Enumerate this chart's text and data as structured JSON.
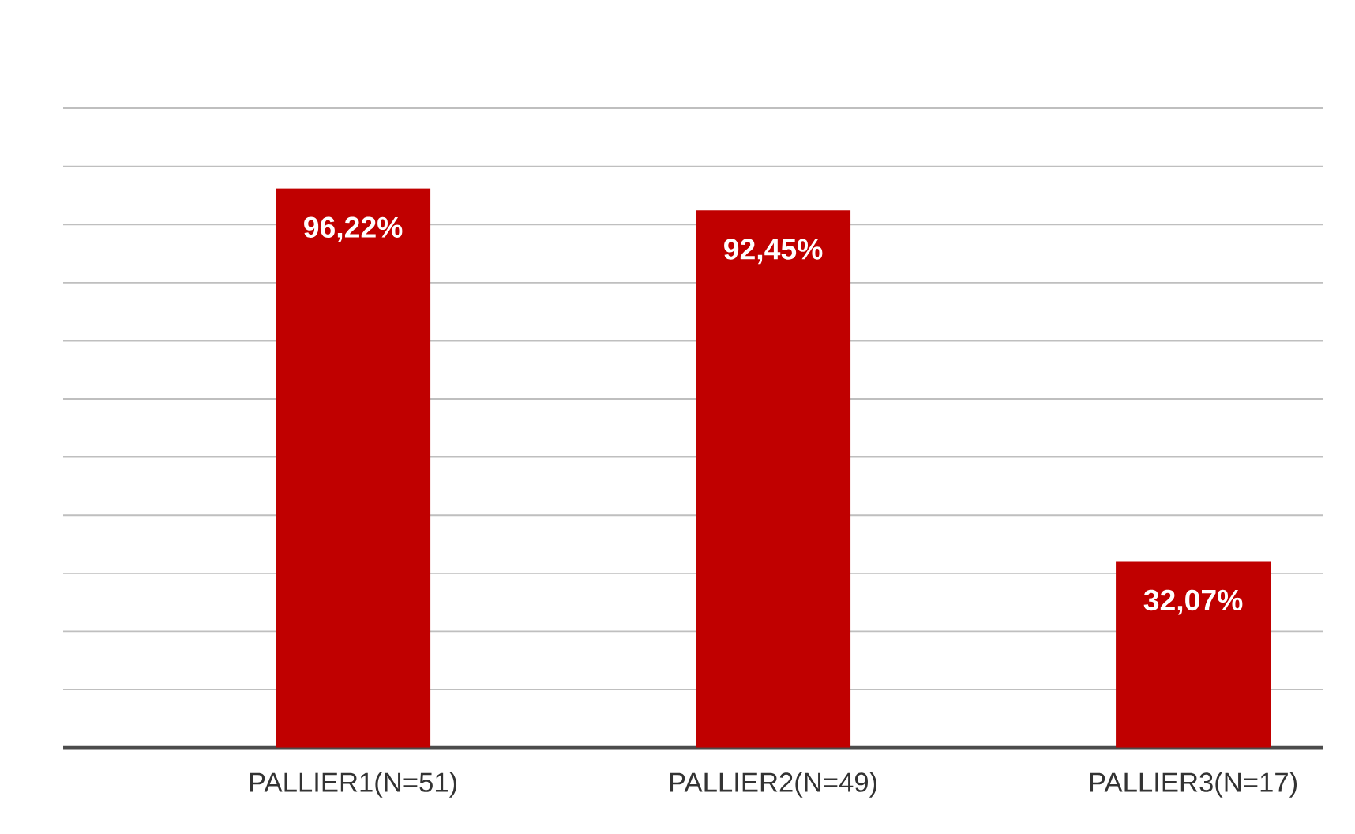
{
  "chart_data": {
    "type": "bar",
    "categories": [
      "PALLIER1(N=51)",
      "PALLIER2(N=49)",
      "PALLIER3(N=17)"
    ],
    "values": [
      96.22,
      92.45,
      32.07
    ],
    "value_labels": [
      "96,22%",
      "92,45%",
      "32,07%"
    ],
    "color": "#c00000",
    "tick_labels": "x",
    "grid": "y"
  }
}
